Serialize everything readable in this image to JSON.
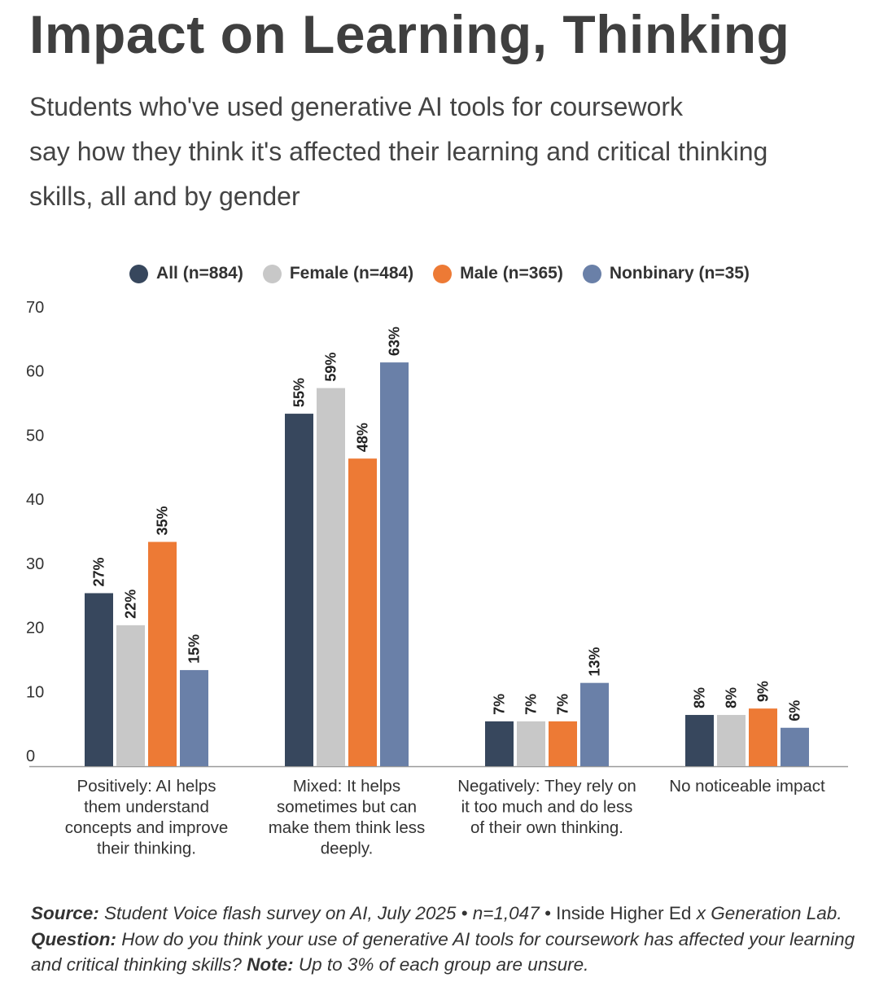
{
  "title": "Impact on Learning, Thinking",
  "subtitle_lines": [
    "Students who've used generative AI tools for coursework",
    "say how they think it's affected their learning and critical thinking",
    "skills, all and by gender"
  ],
  "colors": {
    "all": "#37475d",
    "female": "#c8c8c8",
    "male": "#ed7a35",
    "nonbinary": "#6a80a8",
    "axis": "#999999",
    "text": "#333333"
  },
  "chart_data": {
    "type": "bar",
    "categories": [
      [
        "Positively: AI helps",
        "them understand",
        "concepts and improve",
        "their thinking."
      ],
      [
        "Mixed: It helps",
        "sometimes but can",
        "make them think less",
        "deeply."
      ],
      [
        "Negatively: They rely on",
        "it too much and do less",
        "of their own thinking."
      ],
      [
        "No noticeable impact"
      ]
    ],
    "series": [
      {
        "name": "All (n=884)",
        "color": "#37475d",
        "values": [
          27,
          55,
          7,
          8
        ],
        "labels": [
          "27%",
          "55%",
          "7%",
          "8%"
        ]
      },
      {
        "name": "Female (n=484)",
        "color": "#c8c8c8",
        "values": [
          22,
          59,
          7,
          8
        ],
        "labels": [
          "22%",
          "59%",
          "7%",
          "8%"
        ]
      },
      {
        "name": "Male (n=365)",
        "color": "#ed7a35",
        "values": [
          35,
          48,
          7,
          9
        ],
        "labels": [
          "35%",
          "48%",
          "7%",
          "9%"
        ]
      },
      {
        "name": "Nonbinary (n=35)",
        "color": "#6a80a8",
        "values": [
          15,
          63,
          13,
          6
        ],
        "labels": [
          "15%",
          "63%",
          "13%",
          "6%"
        ]
      }
    ],
    "yticks": [
      "0",
      "10",
      "20",
      "30",
      "40",
      "50",
      "60",
      "70"
    ],
    "ylim": [
      0,
      70
    ],
    "grid": false,
    "legend": "top-center"
  },
  "footer": {
    "source_label": "Source:",
    "source_text": " Student Voice flash survey on AI, July 2025 • n=1,047 •",
    "source_plain": " Inside Higher Ed ",
    "source_x": "x",
    "source_rest": " Generation Lab.",
    "question_label": " Question:",
    "question_text": " How do you think your use of generative AI tools for coursework has affected your learning and critical thinking skills?",
    "note_label": " Note:",
    "note_text": " Up to 3% of each group are unsure."
  }
}
